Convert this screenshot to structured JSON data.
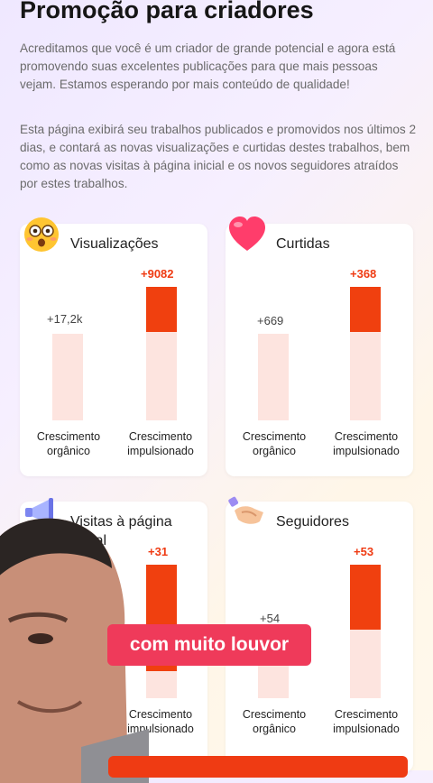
{
  "header": {
    "title": "Promoção para criadores",
    "paragraph1": "Acreditamos que você é um criador de grande potencial e agora está promovendo suas excelentes publicações para que mais pessoas vejam. Estamos esperando por mais conteúdo de qualidade!",
    "paragraph2": "Esta página exibirá seu trabalhos publicados e promovidos nos últimos 2 dias, e contará as novas visualizações e curtidas destes trabalhos, bem como as novas visitas à página inicial e os novos seguidores atraídos por estes trabalhos."
  },
  "labels": {
    "organic": "Crescimento orgânico",
    "boosted": "Crescimento impulsionado"
  },
  "cards": [
    {
      "title": "Visualizações",
      "icon": "surprised-face-icon",
      "organic": "+17,2k",
      "boosted": "+9082",
      "boosted_fill_fraction": 0.34
    },
    {
      "title": "Curtidas",
      "icon": "heart-icon",
      "organic": "+669",
      "boosted": "+368",
      "boosted_fill_fraction": 0.34
    },
    {
      "title": "Visitas à página inicial",
      "icon": "megaphone-icon",
      "organic": "",
      "boosted": "+31",
      "boosted_fill_fraction": 0.8
    },
    {
      "title": "Seguidores",
      "icon": "handshake-icon",
      "organic": "+54",
      "boosted": "+53",
      "boosted_fill_fraction": 0.48
    }
  ],
  "overlay": {
    "caption": "com muito louvor"
  },
  "colors": {
    "accent": "#f0400f",
    "bar_background": "#fde4df",
    "caption_background": "#ef3a5a"
  }
}
